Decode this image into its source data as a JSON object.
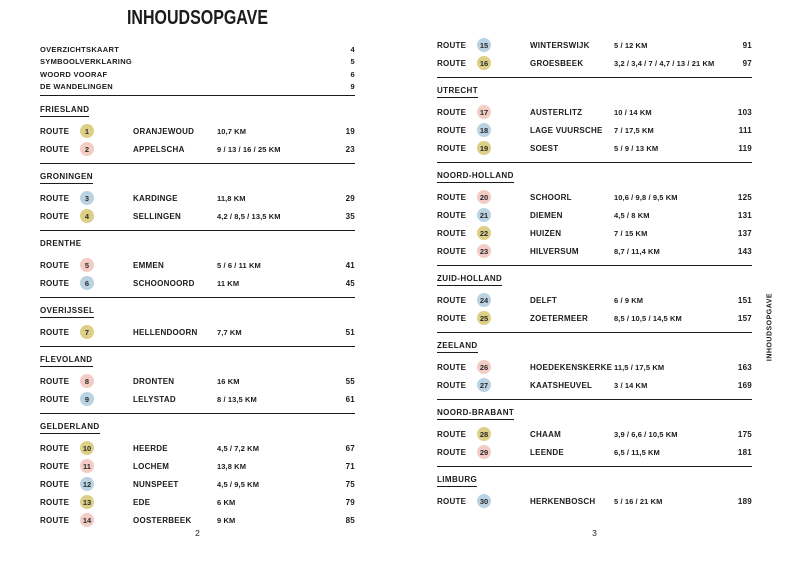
{
  "title": "INHOUDSOPGAVE",
  "spine_label": "INHOUDSOPGAVE",
  "route_word": "ROUTE",
  "badge_colors": {
    "yellow": "#ddd086",
    "pink": "#f4ccc6",
    "blue": "#b9d3e2"
  },
  "front_matter": [
    {
      "label": "OVERZICHTSKAART",
      "page": "4"
    },
    {
      "label": "SYMBOOLVERKLARING",
      "page": "5"
    },
    {
      "label": "WOORD VOORAF",
      "page": "6"
    },
    {
      "label": "DE WANDELINGEN",
      "page": "9"
    }
  ],
  "pages": [
    {
      "number": "2",
      "sections": [
        {
          "heading": "FRIESLAND",
          "underline": true,
          "rule_after": true,
          "routes": [
            {
              "num": "1",
              "color": "yellow",
              "name": "ORANJEWOUD",
              "distance": "10,7 KM",
              "page": "19"
            },
            {
              "num": "2",
              "color": "pink",
              "name": "APPELSCHA",
              "distance": "9 / 13 / 16 / 25 KM",
              "page": "23"
            }
          ]
        },
        {
          "heading": "GRONINGEN",
          "underline": true,
          "rule_after": true,
          "routes": [
            {
              "num": "3",
              "color": "blue",
              "name": "KARDINGE",
              "distance": "11,8 KM",
              "page": "29"
            },
            {
              "num": "4",
              "color": "yellow",
              "name": "SELLINGEN",
              "distance": "4,2 / 8,5 / 13,5 KM",
              "page": "35"
            }
          ]
        },
        {
          "heading": "DRENTHE",
          "underline": false,
          "rule_after": true,
          "routes": [
            {
              "num": "5",
              "color": "pink",
              "name": "EMMEN",
              "distance": "5 / 6 / 11 KM",
              "page": "41"
            },
            {
              "num": "6",
              "color": "blue",
              "name": "SCHOONOORD",
              "distance": "11 KM",
              "page": "45"
            }
          ]
        },
        {
          "heading": "OVERIJSSEL",
          "underline": true,
          "rule_after": true,
          "routes": [
            {
              "num": "7",
              "color": "yellow",
              "name": "HELLENDOORN",
              "distance": "7,7 KM",
              "page": "51"
            }
          ]
        },
        {
          "heading": "FLEVOLAND",
          "underline": true,
          "rule_after": true,
          "routes": [
            {
              "num": "8",
              "color": "pink",
              "name": "DRONTEN",
              "distance": "16 KM",
              "page": "55"
            },
            {
              "num": "9",
              "color": "blue",
              "name": "LELYSTAD",
              "distance": "8 / 13,5 KM",
              "page": "61"
            }
          ]
        },
        {
          "heading": "GELDERLAND",
          "underline": true,
          "rule_after": false,
          "routes": [
            {
              "num": "10",
              "color": "yellow",
              "name": "HEERDE",
              "distance": "4,5 / 7,2 KM",
              "page": "67"
            },
            {
              "num": "11",
              "color": "pink",
              "name": "LOCHEM",
              "distance": "13,8 KM",
              "page": "71"
            },
            {
              "num": "12",
              "color": "blue",
              "name": "NUNSPEET",
              "distance": "4,5 / 9,5 KM",
              "page": "75"
            },
            {
              "num": "13",
              "color": "yellow",
              "name": "EDE",
              "distance": "6 KM",
              "page": "79"
            },
            {
              "num": "14",
              "color": "pink",
              "name": "OOSTERBEEK",
              "distance": "9 KM",
              "page": "85"
            }
          ]
        }
      ]
    },
    {
      "number": "3",
      "sections": [
        {
          "heading": null,
          "underline": false,
          "rule_after": true,
          "routes": [
            {
              "num": "15",
              "color": "blue",
              "name": "WINTERSWIJK",
              "distance": "5 / 12 KM",
              "page": "91"
            },
            {
              "num": "16",
              "color": "yellow",
              "name": "GROESBEEK",
              "distance": "3,2 / 3,4 / 7 / 4,7 / 13 / 21 KM",
              "page": "97"
            }
          ]
        },
        {
          "heading": "UTRECHT",
          "underline": true,
          "rule_after": true,
          "routes": [
            {
              "num": "17",
              "color": "pink",
              "name": "AUSTERLITZ",
              "distance": "10 / 14 KM",
              "page": "103"
            },
            {
              "num": "18",
              "color": "blue",
              "name": "LAGE VUURSCHE",
              "distance": "7 / 17,5 KM",
              "page": "111"
            },
            {
              "num": "19",
              "color": "yellow",
              "name": "SOEST",
              "distance": "5 / 9 / 13 KM",
              "page": "119"
            }
          ]
        },
        {
          "heading": "NOORD-HOLLAND",
          "underline": true,
          "rule_after": true,
          "routes": [
            {
              "num": "20",
              "color": "pink",
              "name": "SCHOORL",
              "distance": "10,6 / 9,8 / 9,5 KM",
              "page": "125"
            },
            {
              "num": "21",
              "color": "blue",
              "name": "DIEMEN",
              "distance": "4,5 / 8 KM",
              "page": "131"
            },
            {
              "num": "22",
              "color": "yellow",
              "name": "HUIZEN",
              "distance": "7 / 15 KM",
              "page": "137"
            },
            {
              "num": "23",
              "color": "pink",
              "name": "HILVERSUM",
              "distance": "8,7 / 11,4 KM",
              "page": "143"
            }
          ]
        },
        {
          "heading": "ZUID-HOLLAND",
          "underline": true,
          "rule_after": true,
          "routes": [
            {
              "num": "24",
              "color": "blue",
              "name": "DELFT",
              "distance": "6 / 9 KM",
              "page": "151"
            },
            {
              "num": "25",
              "color": "yellow",
              "name": "ZOETERMEER",
              "distance": "8,5 / 10,5 / 14,5 KM",
              "page": "157"
            }
          ]
        },
        {
          "heading": "ZEELAND",
          "underline": true,
          "rule_after": true,
          "routes": [
            {
              "num": "26",
              "color": "pink",
              "name": "HOEDEKENSKERKE",
              "distance": "11,5 / 17,5 KM",
              "page": "163"
            },
            {
              "num": "27",
              "color": "blue",
              "name": "KAATSHEUVEL",
              "distance": "3 / 14 KM",
              "page": "169"
            }
          ]
        },
        {
          "heading": "NOORD-BRABANT",
          "underline": true,
          "rule_after": true,
          "routes": [
            {
              "num": "28",
              "color": "yellow",
              "name": "CHAAM",
              "distance": "3,9 / 6,6 / 10,5 KM",
              "page": "175"
            },
            {
              "num": "29",
              "color": "pink",
              "name": "LEENDE",
              "distance": "6,5 / 11,5 KM",
              "page": "181"
            }
          ]
        },
        {
          "heading": "LIMBURG",
          "underline": true,
          "rule_after": false,
          "routes": [
            {
              "num": "30",
              "color": "blue",
              "name": "HERKENBOSCH",
              "distance": "5 / 16 / 21 KM",
              "page": "189"
            }
          ]
        }
      ]
    }
  ]
}
